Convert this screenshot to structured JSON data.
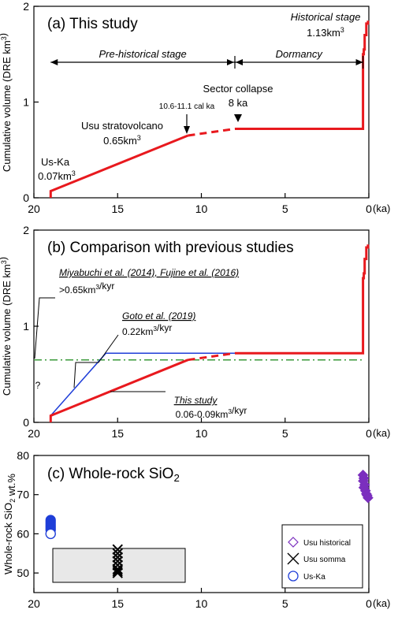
{
  "chart_data": [
    {
      "type": "line",
      "panel_title": "(a) This study",
      "ylabel": "Cumulative volume (DRE km3)",
      "xlabel": "(ka)",
      "xlim": [
        20,
        0
      ],
      "ylim": [
        0,
        2
      ],
      "x_ticks": [
        20,
        15,
        10,
        5,
        0
      ],
      "y_ticks": [
        0,
        1,
        2
      ],
      "series": [
        {
          "color": "#e8191e",
          "segments": [
            {
              "style": "solid",
              "points": [
                [
                  19,
                  0
                ],
                [
                  19,
                  0.07
                ],
                [
                  10.8,
                  0.65
                ]
              ]
            },
            {
              "style": "dashed",
              "points": [
                [
                  10.8,
                  0.65
                ],
                [
                  8,
                  0.72
                ]
              ]
            },
            {
              "style": "solid",
              "points": [
                [
                  8,
                  0.72
                ],
                [
                  0.35,
                  0.72
                ],
                [
                  0.35,
                  1.5
                ],
                [
                  0.3,
                  1.5
                ],
                [
                  0.3,
                  1.55
                ],
                [
                  0.25,
                  1.55
                ],
                [
                  0.25,
                  1.7
                ],
                [
                  0.15,
                  1.7
                ],
                [
                  0.15,
                  1.82
                ],
                [
                  0.05,
                  1.82
                ],
                [
                  0.05,
                  1.85
                ]
              ]
            }
          ]
        }
      ],
      "ranges": [
        {
          "label": "Pre-historical stage",
          "from": 19,
          "to": 8
        },
        {
          "label": "Dormancy",
          "from": 8,
          "to": 0.35
        }
      ],
      "annotations": {
        "hist_label": "Historical stage",
        "hist_value": "1.13km3",
        "sector_label": "Sector collapse",
        "sector_value": "8 ka",
        "cal_label": "10.6-11.1 cal ka",
        "usu_label": "Usu stratovolcano",
        "usu_value": "0.65km3",
        "uska_label": "Us-Ka",
        "uska_value": "0.07km3"
      }
    },
    {
      "type": "line",
      "panel_title": "(b) Comparison with previous studies",
      "ylabel": "Cumulative volume (DRE km3)",
      "xlabel": "(ka)",
      "xlim": [
        20,
        0
      ],
      "ylim": [
        0,
        2
      ],
      "x_ticks": [
        20,
        15,
        10,
        5,
        0
      ],
      "y_ticks": [
        0,
        1,
        2
      ],
      "series": [
        {
          "color": "#3a9a3a",
          "segments": [
            {
              "style": "dashdot",
              "points": [
                [
                  20,
                  0.65
                ],
                [
                  0.35,
                  0.65
                ]
              ]
            }
          ]
        },
        {
          "color": "#1f3ed8",
          "segments": [
            {
              "style": "solid",
              "points": [
                [
                  19,
                  0.07
                ],
                [
                  15.7,
                  0.72
                ],
                [
                  8,
                  0.72
                ]
              ]
            }
          ]
        },
        {
          "color": "#e8191e",
          "segments": [
            {
              "style": "solid",
              "points": [
                [
                  19,
                  0
                ],
                [
                  19,
                  0.07
                ],
                [
                  10.8,
                  0.65
                ]
              ]
            },
            {
              "style": "dashed",
              "points": [
                [
                  10.8,
                  0.65
                ],
                [
                  8,
                  0.72
                ]
              ]
            },
            {
              "style": "solid",
              "points": [
                [
                  8,
                  0.72
                ],
                [
                  0.35,
                  0.72
                ],
                [
                  0.35,
                  1.5
                ],
                [
                  0.3,
                  1.5
                ],
                [
                  0.3,
                  1.55
                ],
                [
                  0.25,
                  1.55
                ],
                [
                  0.25,
                  1.7
                ],
                [
                  0.15,
                  1.7
                ],
                [
                  0.15,
                  1.82
                ],
                [
                  0.05,
                  1.82
                ],
                [
                  0.05,
                  1.85
                ]
              ]
            }
          ]
        }
      ],
      "annotations": {
        "miya_ref": "Miyabuchi et al. (2014), Fujine et al. (2016)",
        "miya_rate": ">0.65km3/kyr",
        "goto_ref": "Goto et al. (2019)",
        "goto_rate": "0.22km3/kyr",
        "this_ref": "This study",
        "this_rate": "0.06-0.09km3/kyr",
        "question": "?"
      }
    },
    {
      "type": "scatter",
      "panel_title": "(c) Whole-rock SiO2",
      "ylabel": "Whole-rock SiO2 wt.%",
      "xlabel": "(ka)",
      "xlim": [
        20,
        0
      ],
      "ylim": [
        45,
        80
      ],
      "x_ticks": [
        20,
        15,
        10,
        5,
        0
      ],
      "y_ticks": [
        50,
        60,
        70,
        80
      ],
      "series": [
        {
          "name": "Usu historical",
          "marker": "diamond",
          "color": "#7b2fbe",
          "points": [
            [
              0.35,
              75
            ],
            [
              0.3,
              74.2
            ],
            [
              0.33,
              73.5
            ],
            [
              0.25,
              72.5
            ],
            [
              0.3,
              71.8
            ],
            [
              0.2,
              71
            ],
            [
              0.15,
              70.2
            ],
            [
              0.1,
              69.8
            ],
            [
              0.05,
              69.2
            ]
          ]
        },
        {
          "name": "Usu somma",
          "marker": "x",
          "color": "#000000",
          "points": [
            [
              15,
              56
            ],
            [
              15,
              55
            ],
            [
              15,
              54
            ],
            [
              15,
              53
            ],
            [
              15,
              52
            ],
            [
              15,
              51
            ],
            [
              15,
              50.5
            ],
            [
              15,
              50
            ]
          ]
        },
        {
          "name": "Us-Ka",
          "marker": "circle",
          "color": "#1f3ed8",
          "points": [
            [
              19,
              63.5
            ],
            [
              19,
              63
            ],
            [
              19,
              62.5
            ],
            [
              19,
              62
            ],
            [
              19,
              61.5
            ],
            [
              19,
              61
            ],
            [
              19,
              60
            ]
          ]
        }
      ],
      "legend_position": "bottom-right"
    }
  ]
}
